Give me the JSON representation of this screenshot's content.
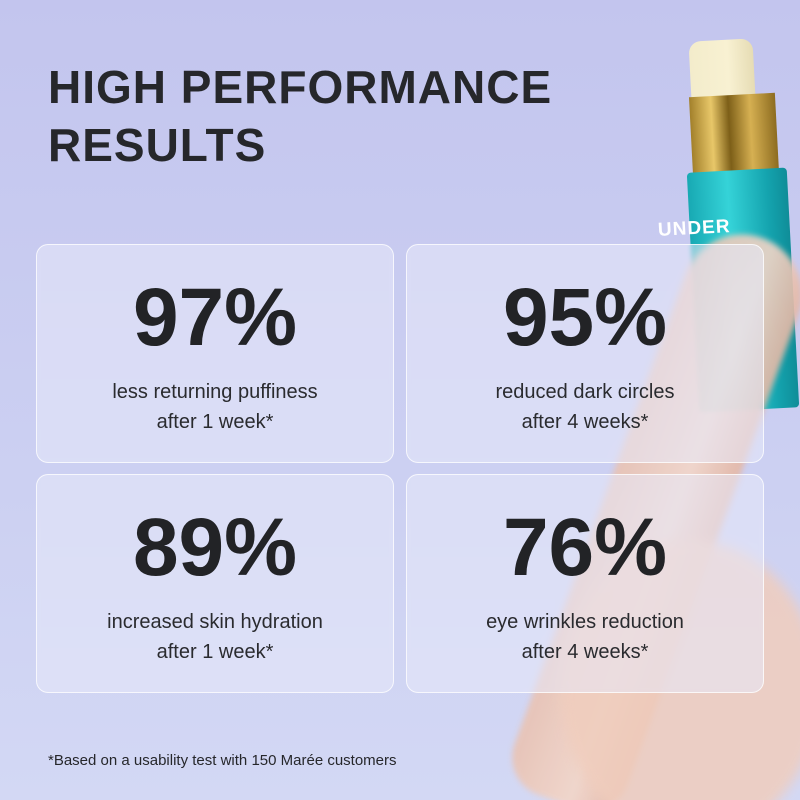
{
  "title_lines": [
    "HIGH PERFORMANCE",
    "RESULTS"
  ],
  "product_brand_text": "UNDER",
  "stats": [
    {
      "value": "97%",
      "line1": "less returning puffiness",
      "line2": "after 1 week*"
    },
    {
      "value": "95%",
      "line1": "reduced dark circles",
      "line2": "after 4 weeks*"
    },
    {
      "value": "89%",
      "line1": "increased skin hydration",
      "line2": "after 1 week*"
    },
    {
      "value": "76%",
      "line1": "eye wrinkles reduction",
      "line2": "after 4 weeks*"
    }
  ],
  "footnote": "*Based on a usability test with 150 Marée customers",
  "colors": {
    "background": "#c9ccf0",
    "text": "#222326",
    "tube": "#1fb8c1",
    "gold": "#c9a443"
  }
}
